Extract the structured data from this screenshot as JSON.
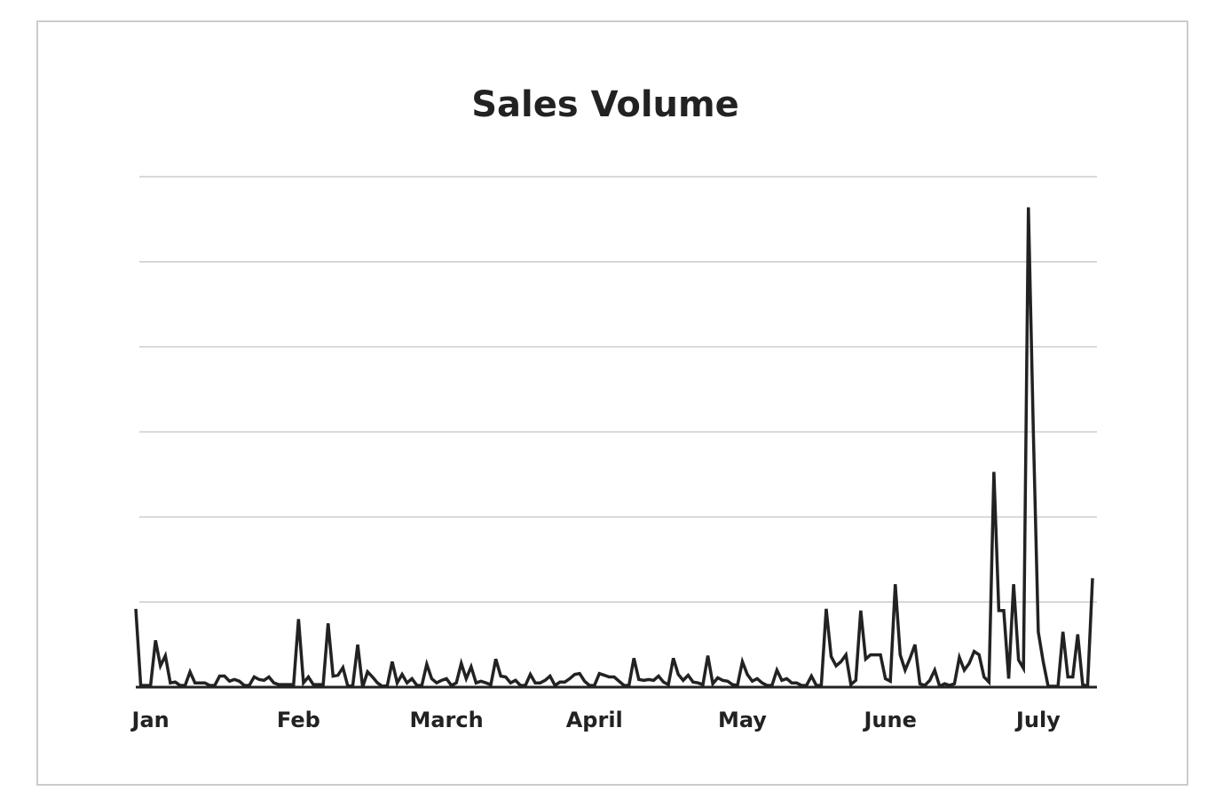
{
  "chart_data": {
    "type": "line",
    "title": "Sales Volume",
    "color": "#222222",
    "grid": true,
    "x": [
      0,
      1,
      2,
      3,
      4,
      5,
      6,
      7,
      8,
      9,
      10,
      11,
      12,
      13,
      14,
      15,
      16,
      17,
      18,
      19,
      20,
      21,
      22,
      23,
      24,
      25,
      26,
      27,
      28,
      29,
      30,
      31,
      32,
      33,
      34,
      35,
      36,
      37,
      38,
      39,
      40,
      41,
      42,
      43,
      44,
      45,
      46,
      47,
      48,
      49,
      50,
      51,
      52,
      53,
      54,
      55,
      56,
      57,
      58,
      59,
      60,
      61,
      62,
      63,
      64,
      65,
      66,
      67,
      68,
      69,
      70,
      71,
      72,
      73,
      74,
      75,
      76,
      77,
      78,
      79,
      80,
      81,
      82,
      83,
      84,
      85,
      86,
      87,
      88,
      89,
      90,
      91,
      92,
      93,
      94,
      95,
      96,
      97,
      98,
      99,
      100,
      101,
      102,
      103,
      104,
      105,
      106,
      107,
      108,
      109,
      110,
      111,
      112,
      113,
      114,
      115,
      116,
      117,
      118,
      119,
      120,
      121,
      122,
      123,
      124,
      125,
      126,
      127,
      128,
      129,
      130,
      131,
      132,
      133,
      134,
      135,
      136,
      137,
      138,
      139,
      140,
      141,
      142,
      143,
      144,
      145,
      146,
      147,
      148,
      149,
      150,
      151,
      152,
      153,
      154,
      155,
      156,
      157,
      158,
      159,
      160,
      161,
      162,
      163,
      164,
      165,
      166,
      167,
      168,
      169,
      170,
      171,
      172,
      173,
      174,
      175,
      176,
      177,
      178,
      179,
      180,
      181,
      182,
      183,
      184,
      185,
      186,
      187,
      188,
      189,
      190,
      191,
      192,
      193,
      194
    ],
    "values": [
      0.92,
      0.02,
      0.02,
      0.02,
      0.55,
      0.25,
      0.37,
      0.05,
      0.06,
      0.02,
      0.02,
      0.18,
      0.05,
      0.05,
      0.05,
      0.02,
      0.02,
      0.13,
      0.13,
      0.07,
      0.09,
      0.07,
      0.02,
      0.02,
      0.12,
      0.09,
      0.08,
      0.12,
      0.05,
      0.03,
      0.03,
      0.03,
      0.03,
      0.8,
      0.05,
      0.12,
      0.03,
      0.03,
      0.03,
      0.75,
      0.13,
      0.14,
      0.23,
      0.01,
      0.02,
      0.5,
      0,
      0.18,
      0.12,
      0.05,
      0.01,
      0.02,
      0.3,
      0.05,
      0.15,
      0.05,
      0.1,
      0.02,
      0.02,
      0.27,
      0.1,
      0.05,
      0.08,
      0.1,
      0.02,
      0.05,
      0.28,
      0.1,
      0.24,
      0.05,
      0.07,
      0.05,
      0.03,
      0.33,
      0.13,
      0.12,
      0.05,
      0.08,
      0.02,
      0.02,
      0.15,
      0.05,
      0.05,
      0.08,
      0.13,
      0.02,
      0.06,
      0.06,
      0.1,
      0.15,
      0.16,
      0.07,
      0.02,
      0.02,
      0.16,
      0.14,
      0.12,
      0.12,
      0.07,
      0.02,
      0.02,
      0.34,
      0.09,
      0.08,
      0.09,
      0.08,
      0.13,
      0.06,
      0.03,
      0.34,
      0.15,
      0.08,
      0.14,
      0.06,
      0.05,
      0.03,
      0.37,
      0.04,
      0.11,
      0.08,
      0.07,
      0.03,
      0.02,
      0.3,
      0.15,
      0.07,
      0.1,
      0.05,
      0.02,
      0.02,
      0.2,
      0.08,
      0.1,
      0.05,
      0.05,
      0.02,
      0.02,
      0.13,
      0.02,
      0.02,
      0.92,
      0.36,
      0.25,
      0.3,
      0.38,
      0.03,
      0.08,
      0.9,
      0.33,
      0.38,
      0.38,
      0.38,
      0.1,
      0.07,
      1.21,
      0.38,
      0.2,
      0.34,
      0.5,
      0.04,
      0.02,
      0.08,
      0.2,
      0.01,
      0.04,
      0.02,
      0.04,
      0.35,
      0.2,
      0.28,
      0.42,
      0.38,
      0.12,
      0.06,
      2.53,
      0.9,
      0.9,
      0.1,
      1.21,
      0.32,
      0.22,
      5.64,
      3.0,
      0.65,
      0.3,
      0.01,
      0.01,
      0.01,
      0.65,
      0.12,
      0.12,
      0.62,
      0.03,
      0.01,
      1.28
    ],
    "xlim": [
      0,
      194
    ],
    "xticks": [
      {
        "value": 3,
        "label": "Jan"
      },
      {
        "value": 33,
        "label": "Feb"
      },
      {
        "value": 63,
        "label": "March"
      },
      {
        "value": 93,
        "label": "April"
      },
      {
        "value": 123,
        "label": "May"
      },
      {
        "value": 153,
        "label": "June"
      },
      {
        "value": 183,
        "label": "July"
      }
    ],
    "ylim": [
      0,
      6
    ],
    "yticks": [
      0,
      1,
      2,
      3,
      4,
      5,
      6
    ]
  }
}
